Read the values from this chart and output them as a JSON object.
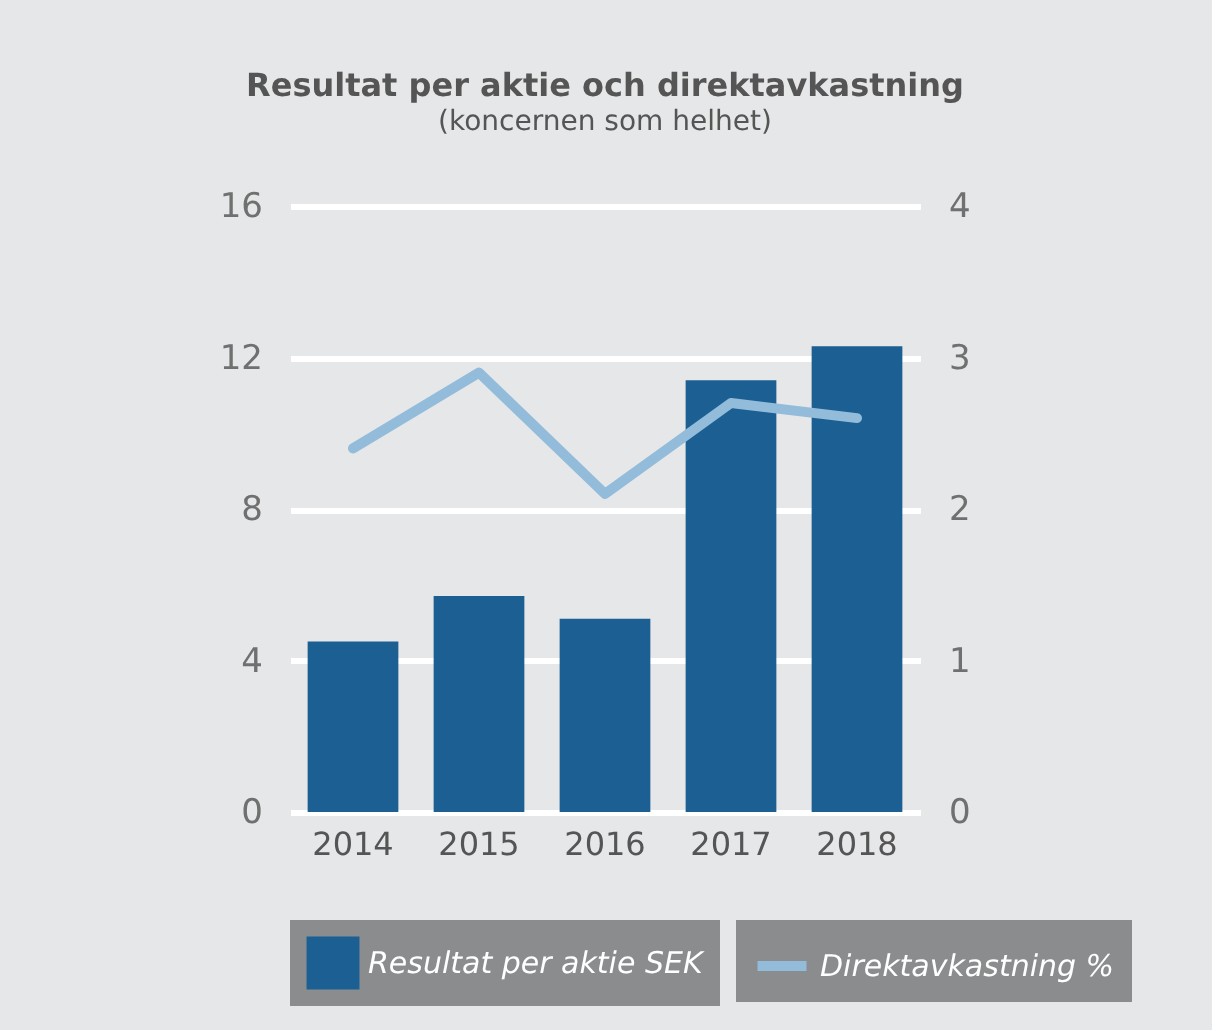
{
  "chart_data": {
    "type": "bar",
    "title": "Resultat per aktie och direktavkastning",
    "subtitle": "(koncernen som helhet)",
    "categories": [
      "2014",
      "2015",
      "2016",
      "2017",
      "2018"
    ],
    "series": [
      {
        "name": "Resultat per aktie SEK",
        "color": "#1b5f93",
        "values": [
          4.5,
          5.7,
          5.1,
          11.4,
          12.3
        ]
      },
      {
        "name": "Direktavkastning %",
        "type": "line",
        "axis": "y2",
        "color": "#93bcdb",
        "values": [
          2.4,
          2.9,
          2.1,
          2.7,
          2.6
        ]
      }
    ],
    "ylim": [
      0,
      16
    ],
    "yticks": [
      0,
      4,
      8,
      12,
      16
    ],
    "y2lim": [
      0,
      4
    ],
    "y2ticks": [
      0,
      1,
      2,
      3,
      4
    ],
    "grid": "y",
    "legend": "bottom"
  }
}
